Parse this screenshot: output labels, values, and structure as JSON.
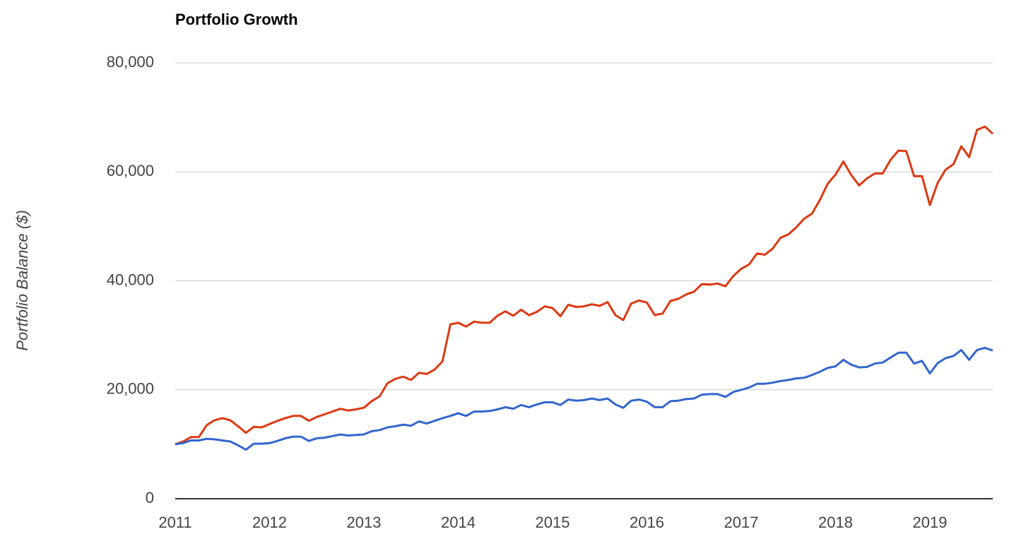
{
  "chart_data": {
    "type": "line",
    "title": "Portfolio Growth",
    "ylabel": "Portfolio Balance ($)",
    "x": [
      2011,
      2011.0833,
      2011.1667,
      2011.25,
      2011.3333,
      2011.4167,
      2011.5,
      2011.5833,
      2011.6667,
      2011.75,
      2011.8333,
      2011.9167,
      2012,
      2012.0833,
      2012.1667,
      2012.25,
      2012.3333,
      2012.4167,
      2012.5,
      2012.5833,
      2012.6667,
      2012.75,
      2012.8333,
      2012.9167,
      2013,
      2013.0833,
      2013.1667,
      2013.25,
      2013.3333,
      2013.4167,
      2013.5,
      2013.5833,
      2013.6667,
      2013.75,
      2013.8333,
      2013.9167,
      2014,
      2014.0833,
      2014.1667,
      2014.25,
      2014.3333,
      2014.4167,
      2014.5,
      2014.5833,
      2014.6667,
      2014.75,
      2014.8333,
      2014.9167,
      2015,
      2015.0833,
      2015.1667,
      2015.25,
      2015.3333,
      2015.4167,
      2015.5,
      2015.5833,
      2015.6667,
      2015.75,
      2015.8333,
      2015.9167,
      2016,
      2016.0833,
      2016.1667,
      2016.25,
      2016.3333,
      2016.4167,
      2016.5,
      2016.5833,
      2016.6667,
      2016.75,
      2016.8333,
      2016.9167,
      2017,
      2017.0833,
      2017.1667,
      2017.25,
      2017.3333,
      2017.4167,
      2017.5,
      2017.5833,
      2017.6667,
      2017.75,
      2017.8333,
      2017.9167,
      2018,
      2018.0833,
      2018.1667,
      2018.25,
      2018.3333,
      2018.4167,
      2018.5,
      2018.5833,
      2018.6667,
      2018.75,
      2018.8333,
      2018.9167,
      2019,
      2019.0833,
      2019.1667,
      2019.25,
      2019.3333,
      2019.4167,
      2019.5,
      2019.5833,
      2019.6667
    ],
    "series": [
      {
        "color": "#dc3912",
        "values": [
          10000,
          10500,
          11300,
          11300,
          13500,
          14400,
          14800,
          14400,
          13300,
          12100,
          13200,
          13100,
          13700,
          14300,
          14800,
          15200,
          15200,
          14300,
          15000,
          15500,
          16000,
          16500,
          16200,
          16400,
          16700,
          17900,
          18800,
          21200,
          22000,
          22400,
          21800,
          23100,
          22900,
          23700,
          25200,
          32000,
          32300,
          31600,
          32500,
          32300,
          32300,
          33600,
          34400,
          33600,
          34700,
          33700,
          34300,
          35300,
          35000,
          33500,
          35600,
          35200,
          35300,
          35700,
          35400,
          36100,
          33700,
          32800,
          35800,
          36400,
          36000,
          33700,
          34000,
          36300,
          36700,
          37500,
          38000,
          39400,
          39300,
          39500,
          39000,
          40900,
          42200,
          43000,
          45000,
          44800,
          45900,
          47900,
          48500,
          49800,
          51400,
          52300,
          54800,
          57800,
          59500,
          61900,
          59400,
          57500,
          58800,
          59700,
          59700,
          62200,
          63900,
          63800,
          59200,
          59200,
          53900,
          58000,
          60400,
          61400,
          64700,
          62700,
          67700,
          68300,
          67000
        ]
      },
      {
        "color": "#3366cc",
        "values": [
          10000,
          10200,
          10700,
          10700,
          11000,
          10900,
          10700,
          10500,
          9800,
          9000,
          10100,
          10100,
          10200,
          10600,
          11100,
          11400,
          11400,
          10600,
          11100,
          11200,
          11500,
          11800,
          11600,
          11700,
          11800,
          12400,
          12600,
          13100,
          13300,
          13600,
          13400,
          14200,
          13800,
          14300,
          14800,
          15200,
          15700,
          15200,
          16000,
          16000,
          16100,
          16400,
          16800,
          16500,
          17200,
          16800,
          17300,
          17700,
          17700,
          17200,
          18200,
          18000,
          18100,
          18400,
          18100,
          18400,
          17300,
          16700,
          18000,
          18200,
          17800,
          16800,
          16800,
          17900,
          18000,
          18300,
          18400,
          19100,
          19200,
          19200,
          18700,
          19600,
          20000,
          20400,
          21100,
          21100,
          21300,
          21600,
          21800,
          22100,
          22200,
          22700,
          23300,
          24000,
          24300,
          25500,
          24600,
          24100,
          24200,
          24800,
          25000,
          25900,
          26800,
          26800,
          24800,
          25300,
          23000,
          24900,
          25800,
          26200,
          27300,
          25500,
          27300,
          27700,
          27200
        ]
      }
    ],
    "xlim": [
      2011,
      2019.6667
    ],
    "xticks": [
      2011,
      2012,
      2013,
      2014,
      2015,
      2016,
      2017,
      2018,
      2019
    ],
    "ylim": [
      0,
      80000
    ],
    "yticks": [
      0,
      {
        "value": 20000,
        "label": "20,000"
      },
      {
        "value": 40000,
        "label": "40,000"
      },
      {
        "value": 60000,
        "label": "60,000"
      },
      {
        "value": 80000,
        "label": "80,000"
      }
    ],
    "grid": true
  }
}
